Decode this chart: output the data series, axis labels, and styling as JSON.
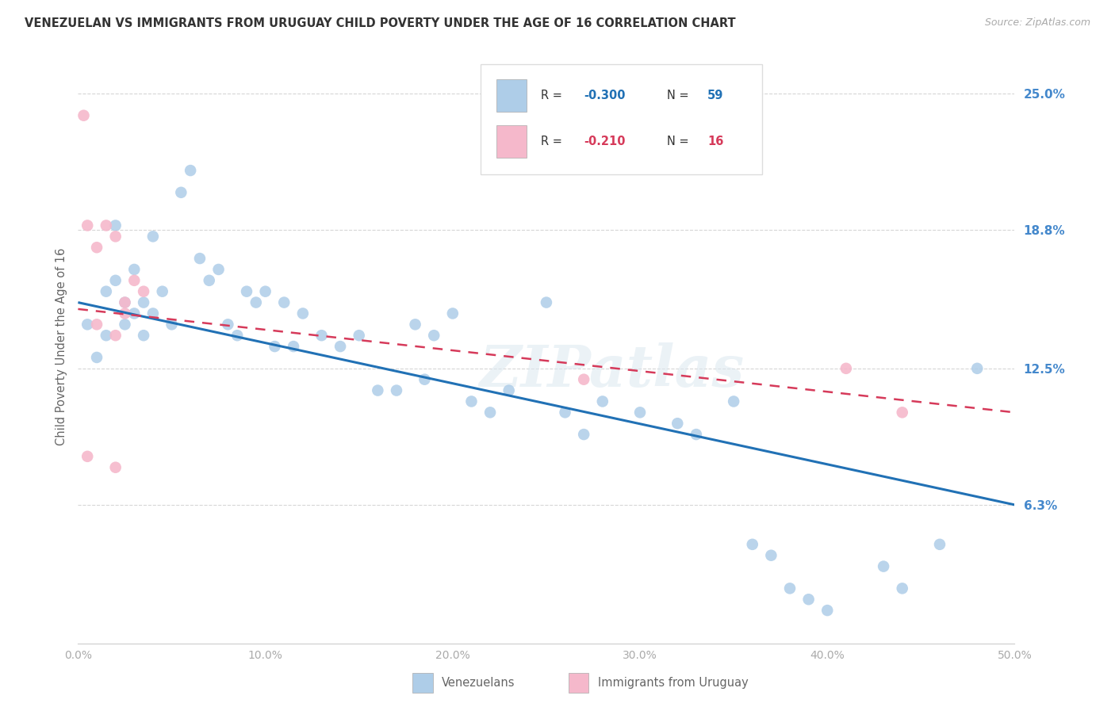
{
  "title": "VENEZUELAN VS IMMIGRANTS FROM URUGUAY CHILD POVERTY UNDER THE AGE OF 16 CORRELATION CHART",
  "source": "Source: ZipAtlas.com",
  "ylabel": "Child Poverty Under the Age of 16",
  "xlim": [
    0,
    50
  ],
  "ylim": [
    0,
    27
  ],
  "ytick_vals": [
    6.3,
    12.5,
    18.8,
    25.0
  ],
  "ytick_labels": [
    "6.3%",
    "12.5%",
    "18.8%",
    "25.0%"
  ],
  "xtick_vals": [
    0,
    10,
    20,
    30,
    40,
    50
  ],
  "xtick_labels": [
    "0.0%",
    "10.0%",
    "20.0%",
    "30.0%",
    "40.0%",
    "50.0%"
  ],
  "blue_scatter_color": "#aecde8",
  "pink_scatter_color": "#f5b8cb",
  "blue_line_color": "#2171b5",
  "pink_line_color": "#d63a5a",
  "label_venezuelans": "Venezuelans",
  "label_uruguay": "Immigrants from Uruguay",
  "watermark": "ZIPatlas",
  "bg_color": "#ffffff",
  "grid_color": "#cccccc",
  "right_axis_color": "#4488cc",
  "title_color": "#333333",
  "source_color": "#aaaaaa",
  "blue_line_y0": 15.5,
  "blue_line_y50": 6.3,
  "pink_line_y0": 15.2,
  "pink_line_y50": 10.5,
  "ven_x": [
    0.5,
    1.0,
    1.5,
    1.5,
    2.0,
    2.0,
    2.5,
    2.5,
    3.0,
    3.0,
    3.5,
    3.5,
    4.0,
    4.0,
    4.5,
    5.0,
    5.5,
    6.0,
    6.5,
    7.0,
    7.5,
    8.0,
    8.5,
    9.0,
    9.5,
    10.0,
    10.5,
    11.0,
    11.5,
    12.0,
    13.0,
    14.0,
    15.0,
    16.0,
    17.0,
    18.0,
    18.5,
    19.0,
    20.0,
    21.0,
    22.0,
    23.0,
    25.0,
    26.0,
    27.0,
    28.0,
    30.0,
    32.0,
    33.0,
    35.0,
    36.0,
    37.0,
    38.0,
    39.0,
    40.0,
    43.0,
    44.0,
    46.0,
    48.0
  ],
  "ven_y": [
    14.5,
    13.0,
    16.0,
    14.0,
    19.0,
    16.5,
    15.5,
    14.5,
    17.0,
    15.0,
    15.5,
    14.0,
    18.5,
    15.0,
    16.0,
    14.5,
    20.5,
    21.5,
    17.5,
    16.5,
    17.0,
    14.5,
    14.0,
    16.0,
    15.5,
    16.0,
    13.5,
    15.5,
    13.5,
    15.0,
    14.0,
    13.5,
    14.0,
    11.5,
    11.5,
    14.5,
    12.0,
    14.0,
    15.0,
    11.0,
    10.5,
    11.5,
    15.5,
    10.5,
    9.5,
    11.0,
    10.5,
    10.0,
    9.5,
    11.0,
    4.5,
    4.0,
    2.5,
    2.0,
    1.5,
    3.5,
    2.5,
    4.5,
    12.5
  ],
  "uru_x": [
    0.3,
    0.5,
    1.0,
    1.5,
    2.0,
    2.5,
    3.0,
    3.5,
    1.0,
    2.0,
    2.5,
    27.0,
    41.0,
    44.0,
    0.5,
    2.0
  ],
  "uru_y": [
    24.0,
    19.0,
    18.0,
    19.0,
    18.5,
    15.5,
    16.5,
    16.0,
    14.5,
    14.0,
    15.0,
    12.0,
    12.5,
    10.5,
    8.5,
    8.0
  ]
}
